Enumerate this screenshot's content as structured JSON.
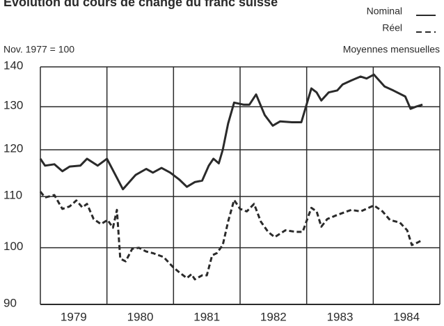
{
  "chart_data": {
    "type": "line",
    "title": "Évolution du cours de change du franc suisse",
    "subtitle": "Nov. 1977 = 100",
    "annotation": "Moyennes mensuelles",
    "log_scale": true,
    "grid": true,
    "legend": "top-right",
    "xlim": [
      1979,
      1985
    ],
    "xgrid": [
      1979,
      1980,
      1981,
      1982,
      1983,
      1984,
      1985
    ],
    "xticks": [
      {
        "value": 1979.5,
        "label": "1979"
      },
      {
        "value": 1980.5,
        "label": "1980"
      },
      {
        "value": 1981.5,
        "label": "1981"
      },
      {
        "value": 1982.5,
        "label": "1982"
      },
      {
        "value": 1983.5,
        "label": "1983"
      },
      {
        "value": 1984.5,
        "label": "1984"
      }
    ],
    "ylim": [
      90,
      140
    ],
    "yticks": [
      90,
      100,
      110,
      120,
      130,
      140
    ],
    "series": [
      {
        "name": "Nominal",
        "color": "#2a2a2a",
        "dash": "solid",
        "x": [
          1979.0,
          1979.07,
          1979.21,
          1979.33,
          1979.44,
          1979.6,
          1979.7,
          1979.86,
          1980.0,
          1980.24,
          1980.43,
          1980.59,
          1980.69,
          1980.82,
          1980.95,
          1981.09,
          1981.2,
          1981.32,
          1981.43,
          1981.53,
          1981.6,
          1981.68,
          1981.74,
          1981.82,
          1981.91,
          1982.05,
          1982.14,
          1982.24,
          1982.37,
          1982.49,
          1982.6,
          1982.78,
          1982.92,
          1983.07,
          1983.15,
          1983.22,
          1983.33,
          1983.46,
          1983.54,
          1983.67,
          1983.81,
          1983.9,
          1984.01,
          1984.17,
          1984.3,
          1984.48,
          1984.56,
          1984.64,
          1984.74
        ],
        "values": [
          118,
          116.5,
          116.8,
          115.3,
          116.3,
          116.5,
          118,
          116.5,
          118,
          111.5,
          114.5,
          115.8,
          115,
          116,
          115,
          113.5,
          112,
          113,
          113.3,
          116.5,
          118,
          117,
          120,
          126,
          131,
          130.5,
          130.5,
          133,
          128,
          125.5,
          126.5,
          126.3,
          126.3,
          134.5,
          133.5,
          131.5,
          133.5,
          134,
          135.5,
          136.5,
          137.5,
          137,
          138,
          135,
          134,
          132.5,
          129.5,
          130,
          130.5
        ]
      },
      {
        "name": "Réel",
        "color": "#2a2a2a",
        "dash": "dashed",
        "x": [
          1979.0,
          1979.07,
          1979.21,
          1979.33,
          1979.44,
          1979.54,
          1979.63,
          1979.7,
          1979.8,
          1979.91,
          1980.01,
          1980.09,
          1980.15,
          1980.2,
          1980.28,
          1980.38,
          1980.48,
          1980.59,
          1980.69,
          1980.85,
          1980.99,
          1981.09,
          1981.2,
          1981.27,
          1981.32,
          1981.43,
          1981.5,
          1981.58,
          1981.65,
          1981.74,
          1981.82,
          1981.91,
          1982.0,
          1982.1,
          1982.21,
          1982.31,
          1982.42,
          1982.52,
          1982.68,
          1982.84,
          1982.94,
          1983.07,
          1983.15,
          1983.22,
          1983.31,
          1983.46,
          1983.67,
          1983.81,
          1984.01,
          1984.14,
          1984.25,
          1984.4,
          1984.51,
          1984.58,
          1984.67,
          1984.74
        ],
        "values": [
          111,
          109.8,
          110.3,
          107.5,
          108,
          109.2,
          107.8,
          108.5,
          105.5,
          104.5,
          105.3,
          103.8,
          107.3,
          98,
          97.5,
          99.8,
          100,
          99.3,
          99,
          98.3,
          96.5,
          95.5,
          94.5,
          95.2,
          94.3,
          95,
          95,
          98.6,
          99,
          100.5,
          105,
          109.3,
          107.5,
          107,
          108.5,
          105,
          103,
          102,
          103.3,
          103,
          103,
          107.7,
          107,
          104,
          105.5,
          106.3,
          107.3,
          107,
          108.2,
          107,
          105.3,
          104.8,
          103.3,
          100.5,
          101,
          101.5
        ]
      }
    ]
  }
}
